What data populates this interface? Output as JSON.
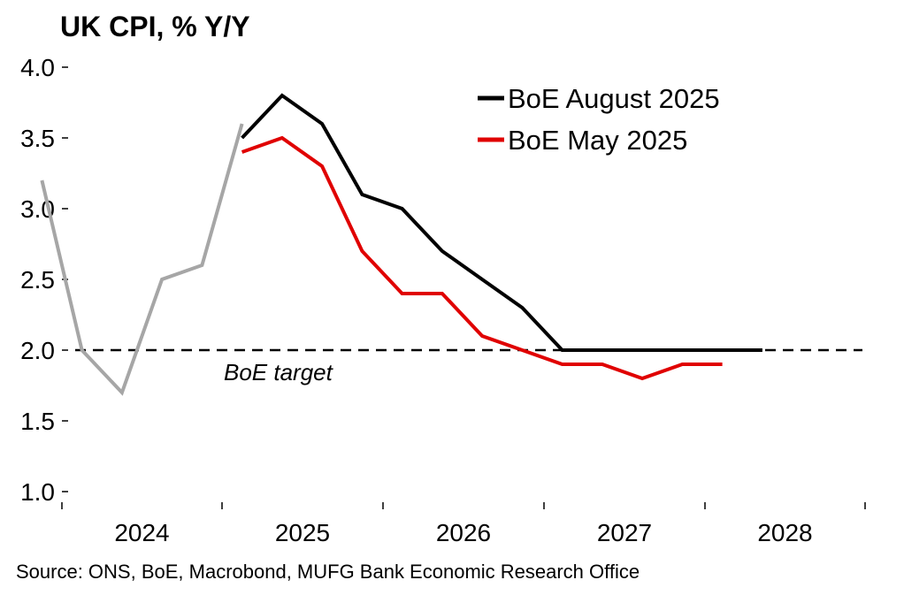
{
  "chart_data": {
    "type": "line",
    "title": "UK CPI, % Y/Y",
    "xlabel": "",
    "ylabel": "",
    "ylim": [
      1.0,
      4.0
    ],
    "yticks": [
      "1.0",
      "1.5",
      "2.0",
      "2.5",
      "3.0",
      "3.5",
      "4.0"
    ],
    "xticks": [
      "2024",
      "2025",
      "2026",
      "2027",
      "2028"
    ],
    "grid": false,
    "legend_position": "top-right",
    "reference_line": {
      "value": 2.0,
      "label": "BoE target",
      "style": "dashed"
    },
    "series": [
      {
        "name": "",
        "color": "#a6a6a6",
        "x": [
          "2023-Q4",
          "2024-Q1",
          "2024-Q2",
          "2024-Q3",
          "2024-Q4",
          "2025-Q1"
        ],
        "values": [
          3.2,
          2.0,
          1.7,
          2.5,
          2.6,
          3.6
        ]
      },
      {
        "name": "BoE August 2025",
        "color": "#000000",
        "x": [
          "2025-Q1",
          "2025-Q2",
          "2025-Q3",
          "2025-Q4",
          "2026-Q1",
          "2026-Q2",
          "2026-Q3",
          "2026-Q4",
          "2027-Q1",
          "2027-Q2",
          "2027-Q3",
          "2027-Q4",
          "2028-Q1",
          "2028-Q2"
        ],
        "values": [
          3.5,
          3.8,
          3.6,
          3.1,
          3.0,
          2.7,
          2.5,
          2.3,
          2.0,
          2.0,
          2.0,
          2.0,
          2.0,
          2.0
        ]
      },
      {
        "name": "BoE May 2025",
        "color": "#e00000",
        "x": [
          "2025-Q1",
          "2025-Q2",
          "2025-Q3",
          "2025-Q4",
          "2026-Q1",
          "2026-Q2",
          "2026-Q3",
          "2026-Q4",
          "2027-Q1",
          "2027-Q2",
          "2027-Q3",
          "2027-Q4",
          "2028-Q1"
        ],
        "values": [
          3.4,
          3.5,
          3.3,
          2.7,
          2.4,
          2.4,
          2.1,
          2.0,
          1.9,
          1.9,
          1.8,
          1.9,
          1.9
        ]
      }
    ]
  },
  "source": "Source: ONS, BoE, Macrobond, MUFG Bank Economic Research Office"
}
